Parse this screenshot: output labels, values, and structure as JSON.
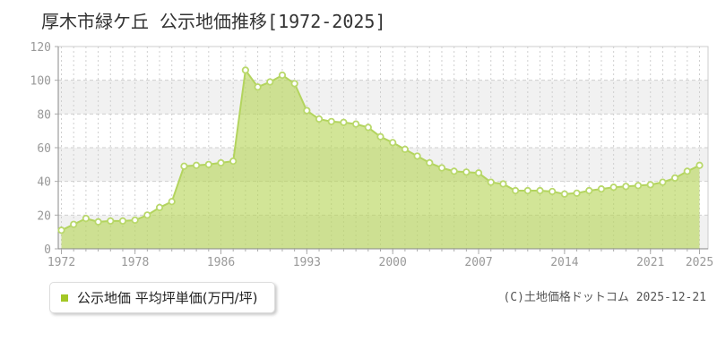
{
  "title": "厚木市緑ケ丘 公示地価推移[1972-2025]",
  "legend": {
    "label": "公示地価 平均坪単価(万円/坪)",
    "swatch_color": "#a3c725"
  },
  "footer": {
    "credit": "(C)土地価格ドットコム 2025-12-21"
  },
  "chart_data": {
    "type": "area",
    "title": "厚木市緑ケ丘 公示地価推移[1972-2025]",
    "series_name": "公示地価 平均坪単価(万円/坪)",
    "unit": "万円/坪",
    "x": [
      1972,
      1973,
      1974,
      1975,
      1976,
      1977,
      1978,
      1979,
      1980,
      1981,
      1983,
      1984,
      1985,
      1986,
      1987,
      1988,
      1989,
      1990,
      1991,
      1992,
      1993,
      1994,
      1995,
      1996,
      1997,
      1998,
      1999,
      2000,
      2001,
      2002,
      2003,
      2004,
      2005,
      2006,
      2007,
      2008,
      2009,
      2010,
      2011,
      2012,
      2013,
      2014,
      2015,
      2016,
      2017,
      2018,
      2019,
      2020,
      2021,
      2022,
      2023,
      2024,
      2025
    ],
    "values": [
      11,
      14.5,
      18,
      16,
      16.5,
      16.5,
      17,
      20,
      24.5,
      28,
      49,
      49.5,
      50,
      51,
      52,
      106,
      96,
      99,
      103,
      98,
      82,
      77,
      75.5,
      75,
      74,
      72,
      66.5,
      63,
      59,
      55,
      51,
      48,
      46,
      45.5,
      45,
      39.5,
      38.5,
      34.5,
      34.5,
      34.5,
      34,
      32.5,
      33,
      34.5,
      35.5,
      36.5,
      37,
      37.5,
      38,
      39.5,
      42,
      46,
      49.5
    ],
    "note": "yearly data points; no point rendered for 1982",
    "ylim": [
      0,
      120
    ],
    "ytick_step": 20,
    "xtick_labels": [
      1972,
      1978,
      1986,
      1993,
      2000,
      2007,
      2014,
      2021,
      2025
    ],
    "grid": "dashed vertical line per year, dashed horizontal every 20, alternating row bands",
    "legend_position": "bottom-left",
    "colors": {
      "area_fill": "#b7d557",
      "area_opacity": 0.62,
      "line": "#b3d45e",
      "marker_fill": "#ffffff",
      "marker_stroke": "#b9d86b",
      "band_gray": "#f1f1f1",
      "band_white": "#ffffff",
      "grid": "#cfcfcf",
      "axis": "#888888",
      "tick": "#aaaaaa",
      "plot_border": "#cccccc"
    }
  }
}
